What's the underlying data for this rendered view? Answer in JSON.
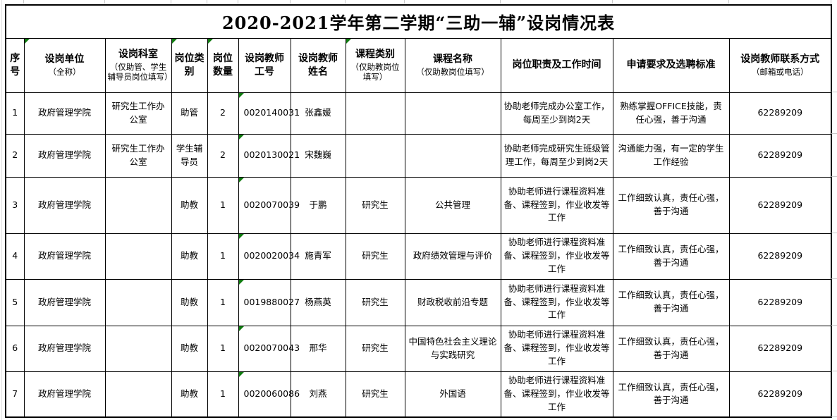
{
  "title": "2020-2021学年第二学期“三助一辅”设岗情况表",
  "colors": {
    "border": "#000000",
    "flag_green": "#0e7a0e",
    "gridline": "#c9c9c9",
    "text": "#000000",
    "background": "#ffffff"
  },
  "icons": {
    "cell_flag": "green-corner-triangle-icon"
  },
  "table": {
    "row_flag_column": 5,
    "columns": [
      {
        "key": "serial",
        "label": "序\n号",
        "sub": "",
        "flag": false
      },
      {
        "key": "unit",
        "label": "设岗单位",
        "sub": "（全称）",
        "flag": true
      },
      {
        "key": "department",
        "label": "设岗科室",
        "sub": "（仅助管、学生辅导员岗位填写）",
        "flag": false
      },
      {
        "key": "post-type",
        "label": "岗位类\n别",
        "sub": "",
        "flag": true
      },
      {
        "key": "post-count",
        "label": "岗位\n数量",
        "sub": "",
        "flag": true
      },
      {
        "key": "teacher-id",
        "label": "设岗教师\n工号",
        "sub": "",
        "flag": false
      },
      {
        "key": "teacher-name",
        "label": "设岗教师\n姓名",
        "sub": "",
        "flag": false
      },
      {
        "key": "course-type",
        "label": "课程类别",
        "sub": "（仅助教岗位填写）",
        "flag": true
      },
      {
        "key": "course-name",
        "label": "课程名称",
        "sub": "（仅助教岗位填写）",
        "flag": false
      },
      {
        "key": "duties",
        "label": "岗位职责及工作时间",
        "sub": "",
        "flag": false
      },
      {
        "key": "requirements",
        "label": "申请要求及选聘标准",
        "sub": "",
        "flag": false
      },
      {
        "key": "contact",
        "label": "设岗教师联系方式",
        "sub": "（邮箱或电话）",
        "flag": false
      }
    ],
    "rows": [
      {
        "cells": [
          "1",
          "政府管理学院",
          "研究生工作办公室",
          "助管",
          "2",
          "0020140031",
          "张鑫媛",
          "",
          "",
          "协助老师完成办公室工作，每周至少到岗2天",
          "熟练掌握OFFICE技能，责任心强，善于沟通",
          "62289209"
        ]
      },
      {
        "cells": [
          "2",
          "政府管理学院",
          "研究生工作办公室",
          "学生辅导员",
          "2",
          "0020130021",
          "宋魏巍",
          "",
          "",
          "协助老师完成研究生班级管理工作，每周至少到岗2天",
          "沟通能力强，有一定的学生工作经验",
          "62289209"
        ]
      },
      {
        "cells": [
          "3",
          "政府管理学院",
          "",
          "助教",
          "1",
          "0020070039",
          "于鹏",
          "研究生",
          "公共管理",
          "协助老师进行课程资料准备、课程签到，作业收发等工作",
          "工作细致认真，责任心强，善于沟通",
          "62289209"
        ]
      },
      {
        "cells": [
          "4",
          "政府管理学院",
          "",
          "助教",
          "1",
          "0020020034",
          "施青军",
          "研究生",
          "政府绩效管理与评价",
          "协助老师进行课程资料准备、课程签到，作业收发等工作",
          "工作细致认真，责任心强，善于沟通",
          "62289209"
        ]
      },
      {
        "cells": [
          "5",
          "政府管理学院",
          "",
          "助教",
          "1",
          "0019880027",
          "杨燕英",
          "研究生",
          "财政税收前沿专题",
          "协助老师进行课程资料准备、课程签到，作业收发等工作",
          "工作细致认真，责任心强，善于沟通",
          "62289209"
        ]
      },
      {
        "cells": [
          "6",
          "政府管理学院",
          "",
          "助教",
          "1",
          "0020070043",
          "邢华",
          "研究生",
          "中国特色社会主义理论与实践研究",
          "协助老师进行课程资料准备、课程签到，作业收发等工作",
          "工作细致认真，责任心强，善于沟通",
          "62289209"
        ]
      },
      {
        "cells": [
          "7",
          "政府管理学院",
          "",
          "助教",
          "1",
          "0020060086",
          "刘燕",
          "研究生",
          "外国语",
          "协助老师进行课程资料准备、课程签到，作业收发等工作",
          "工作细致认真，责任心强，善于沟通",
          "62289209"
        ]
      }
    ]
  }
}
